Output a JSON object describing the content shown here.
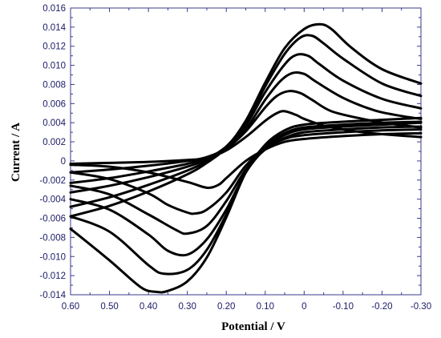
{
  "chart_data": {
    "type": "line",
    "title": "",
    "xlabel": "Potential / V",
    "ylabel": "Current / A",
    "xlim": [
      0.6,
      -0.3
    ],
    "ylim": [
      -0.014,
      0.016
    ],
    "x_reversed": true,
    "grid": false,
    "legend": "none",
    "xticks": [
      "0.60",
      "0.50",
      "0.40",
      "0.30",
      "0.20",
      "0.10",
      "0",
      "-0.10",
      "-0.20",
      "-0.30"
    ],
    "yticks": [
      "0.016",
      "0.014",
      "0.012",
      "0.010",
      "0.008",
      "0.006",
      "0.004",
      "0.002",
      "0",
      "-0.002",
      "-0.004",
      "-0.006",
      "-0.008",
      "-0.010",
      "-0.012",
      "-0.014"
    ],
    "series": [
      {
        "forward_x": [
          0.6,
          0.5,
          0.4,
          0.3,
          0.25,
          0.2,
          0.15,
          0.1,
          0.07,
          0.05,
          0.02,
          0,
          -0.05,
          -0.1,
          -0.15,
          -0.2,
          -0.3
        ],
        "forward_y": [
          -0.0003,
          -0.0002,
          -0.0001,
          0.0001,
          0.0003,
          0.0011,
          0.0025,
          0.0042,
          0.005,
          0.0052,
          0.0048,
          0.0044,
          0.0037,
          0.0033,
          0.003,
          0.0028,
          0.0025
        ],
        "reverse_x": [
          -0.3,
          -0.2,
          -0.1,
          0,
          0.05,
          0.1,
          0.15,
          0.2,
          0.22,
          0.25,
          0.3,
          0.4,
          0.5,
          0.6
        ],
        "reverse_y": [
          0.0029,
          0.0028,
          0.0026,
          0.0023,
          0.002,
          0.0012,
          0.0,
          -0.0018,
          -0.0025,
          -0.0028,
          -0.0022,
          -0.0012,
          -0.0006,
          -0.0004
        ]
      },
      {
        "forward_x": [
          0.6,
          0.5,
          0.4,
          0.3,
          0.25,
          0.2,
          0.15,
          0.1,
          0.07,
          0.04,
          0.01,
          -0.02,
          -0.07,
          -0.15,
          -0.22,
          -0.3
        ],
        "forward_y": [
          -0.0012,
          -0.0009,
          -0.0005,
          0.0,
          0.0004,
          0.0013,
          0.0031,
          0.0056,
          0.0068,
          0.0073,
          0.0071,
          0.0064,
          0.0052,
          0.0044,
          0.0039,
          0.0035
        ],
        "reverse_x": [
          -0.3,
          -0.2,
          -0.1,
          0,
          0.05,
          0.1,
          0.15,
          0.2,
          0.25,
          0.28,
          0.3,
          0.35,
          0.4,
          0.5,
          0.6
        ],
        "reverse_y": [
          0.0033,
          0.0032,
          0.003,
          0.0027,
          0.0023,
          0.0013,
          -0.0005,
          -0.0033,
          -0.0051,
          -0.0055,
          -0.0054,
          -0.0046,
          -0.0034,
          -0.0019,
          -0.0012
        ]
      },
      {
        "forward_x": [
          0.6,
          0.5,
          0.4,
          0.3,
          0.25,
          0.2,
          0.15,
          0.1,
          0.06,
          0.03,
          0.0,
          -0.03,
          -0.1,
          -0.18,
          -0.25,
          -0.3
        ],
        "forward_y": [
          -0.0023,
          -0.0018,
          -0.0011,
          -0.0003,
          0.0003,
          0.0013,
          0.0033,
          0.0064,
          0.0084,
          0.0092,
          0.0091,
          0.0083,
          0.0066,
          0.0053,
          0.0047,
          0.0044
        ],
        "reverse_x": [
          -0.3,
          -0.2,
          -0.1,
          0,
          0.05,
          0.1,
          0.15,
          0.2,
          0.25,
          0.3,
          0.33,
          0.4,
          0.5,
          0.6
        ],
        "reverse_y": [
          0.0036,
          0.0035,
          0.0033,
          0.003,
          0.0024,
          0.0012,
          -0.0009,
          -0.0042,
          -0.0068,
          -0.0076,
          -0.0072,
          -0.0056,
          -0.0035,
          -0.0026
        ]
      },
      {
        "forward_x": [
          0.6,
          0.5,
          0.4,
          0.3,
          0.25,
          0.2,
          0.15,
          0.1,
          0.05,
          0.02,
          -0.01,
          -0.04,
          -0.1,
          -0.2,
          -0.3
        ],
        "forward_y": [
          -0.0033,
          -0.0026,
          -0.0017,
          -0.0006,
          0.0002,
          0.0015,
          0.0037,
          0.0072,
          0.0101,
          0.0111,
          0.011,
          0.0101,
          0.0084,
          0.0065,
          0.0055
        ],
        "reverse_x": [
          -0.3,
          -0.2,
          -0.1,
          0,
          0.05,
          0.1,
          0.15,
          0.2,
          0.25,
          0.3,
          0.35,
          0.4,
          0.5,
          0.6
        ],
        "reverse_y": [
          0.004,
          0.0038,
          0.0036,
          0.0033,
          0.0027,
          0.0013,
          -0.0012,
          -0.0051,
          -0.0082,
          -0.0098,
          -0.0094,
          -0.0077,
          -0.0051,
          -0.004
        ]
      },
      {
        "forward_x": [
          0.6,
          0.5,
          0.4,
          0.3,
          0.25,
          0.2,
          0.15,
          0.1,
          0.05,
          0.01,
          -0.02,
          -0.05,
          -0.1,
          -0.2,
          -0.3
        ],
        "forward_y": [
          -0.0048,
          -0.0038,
          -0.0025,
          -0.001,
          0.0,
          0.0015,
          0.004,
          0.0078,
          0.0112,
          0.0129,
          0.0131,
          0.0123,
          0.0107,
          0.0081,
          0.0068
        ],
        "reverse_x": [
          -0.3,
          -0.2,
          -0.1,
          0,
          0.05,
          0.1,
          0.15,
          0.2,
          0.25,
          0.3,
          0.36,
          0.4,
          0.5,
          0.6
        ],
        "reverse_y": [
          0.0041,
          0.004,
          0.0038,
          0.0035,
          0.0029,
          0.0015,
          -0.0012,
          -0.0056,
          -0.0093,
          -0.0114,
          -0.0118,
          -0.0109,
          -0.0074,
          -0.0058
        ]
      },
      {
        "forward_x": [
          0.6,
          0.5,
          0.4,
          0.3,
          0.25,
          0.2,
          0.15,
          0.1,
          0.05,
          0.0,
          -0.04,
          -0.07,
          -0.12,
          -0.2,
          -0.3
        ],
        "forward_y": [
          -0.0058,
          -0.0047,
          -0.0032,
          -0.0014,
          -0.0002,
          0.0014,
          0.0042,
          0.0082,
          0.0118,
          0.0138,
          0.0143,
          0.0138,
          0.0119,
          0.0096,
          0.0081
        ],
        "reverse_x": [
          -0.3,
          -0.2,
          -0.1,
          0,
          0.05,
          0.1,
          0.15,
          0.2,
          0.25,
          0.3,
          0.35,
          0.38,
          0.42,
          0.5,
          0.6
        ],
        "reverse_y": [
          0.0045,
          0.0043,
          0.0041,
          0.0038,
          0.0032,
          0.0017,
          -0.0012,
          -0.0059,
          -0.0101,
          -0.0126,
          -0.0136,
          -0.0137,
          -0.0132,
          -0.0104,
          -0.0071
        ]
      }
    ]
  }
}
